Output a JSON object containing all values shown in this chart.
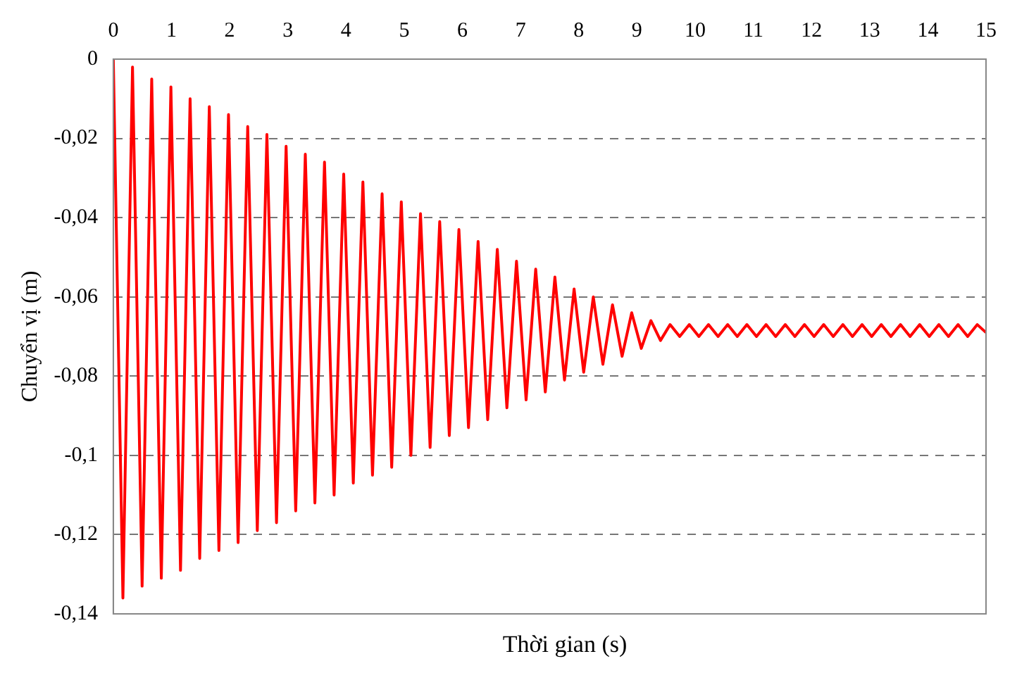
{
  "chart_data": {
    "type": "line",
    "xlabel": "Thời gian (s)",
    "ylabel": "Chuyển vị (m)",
    "xlim": [
      0,
      15
    ],
    "ylim": [
      -0.14,
      0
    ],
    "xticks": [
      0,
      1,
      2,
      3,
      4,
      5,
      6,
      7,
      8,
      9,
      10,
      11,
      12,
      13,
      14,
      15
    ],
    "yticks": [
      {
        "value": 0,
        "label": "0"
      },
      {
        "value": -0.02,
        "label": "-0,02"
      },
      {
        "value": -0.04,
        "label": "-0,04"
      },
      {
        "value": -0.06,
        "label": "-0,06"
      },
      {
        "value": -0.08,
        "label": "-0,08"
      },
      {
        "value": -0.1,
        "label": "-0,1"
      },
      {
        "value": -0.12,
        "label": "-0,12"
      },
      {
        "value": -0.14,
        "label": "-0,14"
      }
    ],
    "grid": "y",
    "legend": false,
    "marker": "none",
    "line_style": "solid",
    "series": [
      {
        "color": "#ff0000",
        "x": [
          0,
          0.165,
          0.33,
          0.495,
          0.66,
          0.825,
          0.99,
          1.155,
          1.32,
          1.485,
          1.65,
          1.815,
          1.98,
          2.145,
          2.31,
          2.475,
          2.64,
          2.805,
          2.97,
          3.135,
          3.3,
          3.465,
          3.63,
          3.795,
          3.96,
          4.125,
          4.29,
          4.455,
          4.62,
          4.785,
          4.95,
          5.115,
          5.28,
          5.445,
          5.61,
          5.775,
          5.94,
          6.105,
          6.27,
          6.435,
          6.6,
          6.765,
          6.93,
          7.095,
          7.26,
          7.425,
          7.59,
          7.755,
          7.92,
          8.085,
          8.25,
          8.415,
          8.58,
          8.745,
          8.91,
          9.075,
          9.24,
          9.405,
          9.57,
          9.735,
          9.9,
          10.065,
          10.23,
          10.395,
          10.56,
          10.725,
          10.89,
          11.055,
          11.22,
          11.385,
          11.55,
          11.715,
          11.88,
          12.045,
          12.21,
          12.375,
          12.54,
          12.705,
          12.87,
          13.035,
          13.2,
          13.365,
          13.53,
          13.695,
          13.86,
          14.025,
          14.19,
          14.355,
          14.52,
          14.685,
          14.85,
          15
        ],
        "values": [
          0,
          -0.136,
          -0.002,
          -0.133,
          -0.005,
          -0.131,
          -0.007,
          -0.129,
          -0.01,
          -0.126,
          -0.012,
          -0.124,
          -0.014,
          -0.122,
          -0.017,
          -0.119,
          -0.019,
          -0.117,
          -0.022,
          -0.114,
          -0.024,
          -0.112,
          -0.026,
          -0.11,
          -0.029,
          -0.107,
          -0.031,
          -0.105,
          -0.034,
          -0.103,
          -0.036,
          -0.1,
          -0.039,
          -0.098,
          -0.041,
          -0.095,
          -0.043,
          -0.093,
          -0.046,
          -0.091,
          -0.048,
          -0.088,
          -0.051,
          -0.086,
          -0.053,
          -0.084,
          -0.055,
          -0.081,
          -0.058,
          -0.079,
          -0.06,
          -0.077,
          -0.062,
          -0.075,
          -0.064,
          -0.073,
          -0.066,
          -0.071,
          -0.067,
          -0.07,
          -0.067,
          -0.07,
          -0.067,
          -0.07,
          -0.067,
          -0.07,
          -0.067,
          -0.07,
          -0.067,
          -0.07,
          -0.067,
          -0.07,
          -0.067,
          -0.07,
          -0.067,
          -0.07,
          -0.067,
          -0.07,
          -0.067,
          -0.07,
          -0.067,
          -0.07,
          -0.067,
          -0.07,
          -0.067,
          -0.07,
          -0.067,
          -0.07,
          -0.067,
          -0.07,
          -0.067,
          -0.069
        ]
      }
    ]
  }
}
